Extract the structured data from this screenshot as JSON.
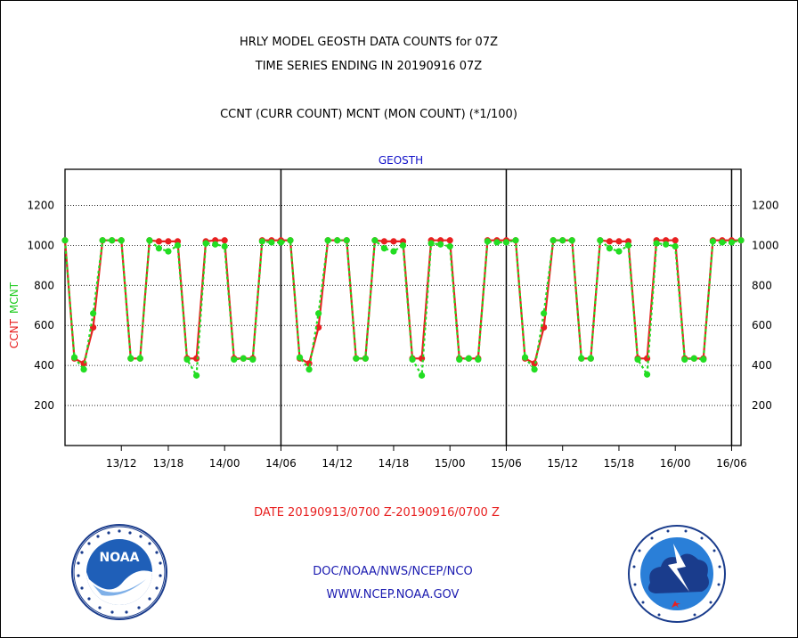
{
  "titles": {
    "line1": "HRLY MODEL GEOSTH DATA COUNTS for 07Z",
    "line2": "TIME SERIES ENDING IN 20190916 07Z",
    "line3": "CCNT (CURR COUNT) MCNT (MON COUNT) (*1/100)"
  },
  "panel_label": "GEOSTH",
  "ylabel_ccnt": "CCNT",
  "ylabel_mcnt": "MCNT",
  "date_range": "DATE 20190913/0700 Z-20190916/0700 Z",
  "footer": {
    "org": "DOC/NOAA/NWS/NCEP/NCO",
    "url": "WWW.NCEP.NOAA.GOV"
  },
  "logos": {
    "left": "noaa-logo",
    "right": "nws-logo"
  },
  "colors": {
    "ccnt": "#e82020",
    "mcnt": "#22dd22",
    "axis": "#000000",
    "grid": "#000000"
  },
  "chart_data": {
    "type": "line",
    "x_units": "hours since 20190913/0700 Z",
    "xlim": [
      0,
      72
    ],
    "ylim": [
      0,
      1380
    ],
    "yticks": [
      200,
      400,
      600,
      800,
      1000,
      1200
    ],
    "ytick_labels": [
      "200",
      "400",
      "600",
      "800",
      "1000",
      "1200"
    ],
    "xticks": [
      6,
      11,
      17,
      23,
      29,
      35,
      41,
      47,
      53,
      59,
      65,
      71
    ],
    "xtick_labels": [
      "13/12",
      "13/18",
      "14/00",
      "14/06",
      "14/12",
      "14/18",
      "15/00",
      "15/06",
      "15/12",
      "15/18",
      "16/00",
      "16/06"
    ],
    "day_separators": [
      23,
      47,
      71
    ],
    "grid": true,
    "x": [
      0,
      1,
      2,
      3,
      4,
      5,
      6,
      7,
      8,
      9,
      10,
      11,
      12,
      13,
      14,
      15,
      16,
      17,
      18,
      19,
      20,
      21,
      22,
      23,
      24,
      25,
      26,
      27,
      28,
      29,
      30,
      31,
      32,
      33,
      34,
      35,
      36,
      37,
      38,
      39,
      40,
      41,
      42,
      43,
      44,
      45,
      46,
      47,
      48,
      49,
      50,
      51,
      52,
      53,
      54,
      55,
      56,
      57,
      58,
      59,
      60,
      61,
      62,
      63,
      64,
      65,
      66,
      67,
      68,
      69,
      70,
      71,
      72
    ],
    "series": [
      {
        "name": "CCNT",
        "values": [
          1025,
          435,
          410,
          590,
          1025,
          1025,
          1025,
          435,
          435,
          1025,
          1020,
          1020,
          1020,
          435,
          435,
          1020,
          1025,
          1025,
          435,
          435,
          435,
          1025,
          1025,
          1025,
          1025,
          435,
          410,
          590,
          1025,
          1025,
          1025,
          435,
          435,
          1025,
          1020,
          1020,
          1020,
          435,
          435,
          1025,
          1025,
          1025,
          435,
          435,
          435,
          1025,
          1025,
          1025,
          1025,
          435,
          410,
          590,
          1025,
          1025,
          1025,
          435,
          435,
          1025,
          1020,
          1020,
          1020,
          435,
          435,
          1025,
          1025,
          1025,
          435,
          435,
          435,
          1025,
          1025,
          1025,
          1025
        ]
      },
      {
        "name": "MCNT",
        "values": [
          1025,
          440,
          380,
          660,
          1025,
          1025,
          1025,
          435,
          435,
          1025,
          985,
          970,
          1000,
          430,
          350,
          1010,
          1005,
          995,
          430,
          435,
          430,
          1020,
          1015,
          1015,
          1025,
          440,
          380,
          660,
          1025,
          1025,
          1025,
          435,
          435,
          1025,
          985,
          970,
          1000,
          430,
          350,
          1010,
          1005,
          995,
          430,
          435,
          430,
          1020,
          1015,
          1015,
          1025,
          440,
          380,
          660,
          1025,
          1025,
          1025,
          435,
          435,
          1025,
          985,
          970,
          1000,
          430,
          355,
          1010,
          1005,
          995,
          430,
          435,
          430,
          1020,
          1015,
          1015,
          1025
        ]
      }
    ]
  }
}
